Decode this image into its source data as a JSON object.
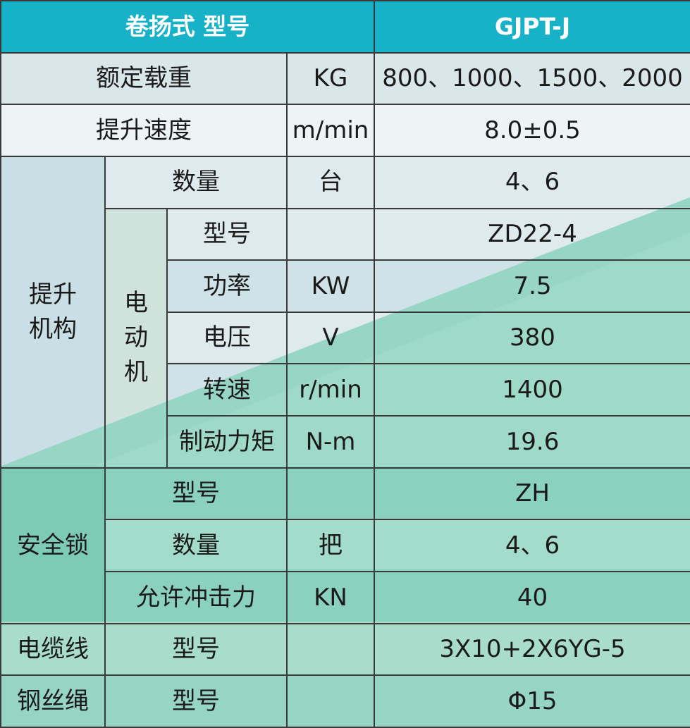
{
  "header": {
    "model_label": "卷扬式 型号",
    "model_value": "GJPT-J"
  },
  "rated_load": {
    "label": "额定载重",
    "unit": "KG",
    "value": "800、1000、1500、2000"
  },
  "lift_speed": {
    "label": "提升速度",
    "unit": "m/min",
    "value": "8.0±0.5"
  },
  "hoist": {
    "group_label": "提升机构",
    "quantity": {
      "label": "数量",
      "unit": "台",
      "value": "4、6"
    },
    "motor": {
      "group_label": "电动机",
      "model": {
        "label": "型号",
        "unit": "",
        "value": "ZD22-4"
      },
      "power": {
        "label": "功率",
        "unit": "KW",
        "value": "7.5"
      },
      "voltage": {
        "label": "电压",
        "unit": "V",
        "value": "380"
      },
      "speed": {
        "label": "转速",
        "unit": "r/min",
        "value": "1400"
      },
      "brake_torque": {
        "label": "制动力矩",
        "unit": "N-m",
        "value": "19.6"
      }
    }
  },
  "safety_lock": {
    "group_label": "安全锁",
    "model": {
      "label": "型号",
      "unit": "",
      "value": "ZH"
    },
    "quantity": {
      "label": "数量",
      "unit": "把",
      "value": "4、6"
    },
    "impact": {
      "label": "允许冲击力",
      "unit": "KN",
      "value": "40"
    }
  },
  "cable": {
    "group_label": "电缆线",
    "label": "型号",
    "unit": "",
    "value": "3X10+2X6YG-5"
  },
  "wire_rope": {
    "group_label": "钢丝绳",
    "label": "型号",
    "unit": "",
    "value": "Φ15"
  },
  "colors": {
    "header_bg": "#17b1c8",
    "light_cell": "#d9e6ea",
    "band_cell": "#c8dde3",
    "green_cell": "#93d3c0",
    "teal_diagonal": "#86cfc0"
  }
}
